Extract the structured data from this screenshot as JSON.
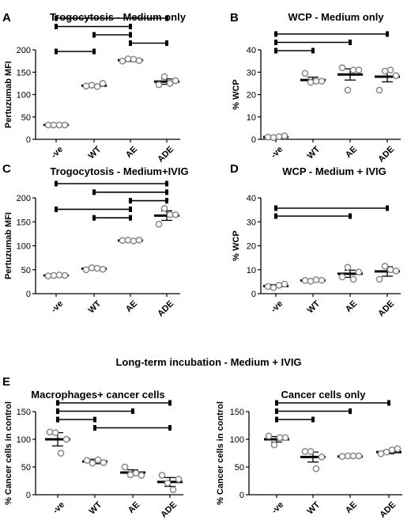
{
  "section_title": "Long-term incubation - Medium + IVIG",
  "chart_data": [
    {
      "id": "A",
      "letter": "A",
      "type": "scatter",
      "title": "Trogocytosis - Medium only",
      "ylabel": "Pertuzumab MFI",
      "ylim": [
        0,
        200
      ],
      "yticks": [
        0,
        50,
        100,
        150,
        200
      ],
      "categories": [
        "-ve",
        "WT",
        "AE",
        "ADE"
      ],
      "means": [
        32,
        120,
        177,
        129
      ],
      "sem": [
        1,
        2,
        3,
        6
      ],
      "points": [
        [
          32,
          32,
          32,
          32
        ],
        [
          119,
          121,
          118,
          125
        ],
        [
          175,
          180,
          179,
          176
        ],
        [
          122,
          140,
          125,
          131
        ]
      ],
      "comparisons": [
        [
          0,
          3
        ],
        [
          0,
          2
        ],
        [
          1,
          2
        ],
        [
          2,
          3
        ],
        [
          0,
          1
        ]
      ]
    },
    {
      "id": "B",
      "letter": "B",
      "type": "scatter",
      "title": "WCP - Medium only",
      "ylabel": "% WCP",
      "ylim": [
        0,
        40
      ],
      "yticks": [
        0,
        10,
        20,
        30,
        40
      ],
      "categories": [
        "-ve",
        "WT",
        "AE",
        "ADE"
      ],
      "means": [
        1,
        26.5,
        29,
        28
      ],
      "sem": [
        0.3,
        1.3,
        2.5,
        2.3
      ],
      "points": [
        [
          1,
          0.8,
          1.2,
          1.5
        ],
        [
          29.5,
          25.5,
          26,
          26
        ],
        [
          32,
          22,
          31,
          31
        ],
        [
          22,
          30.5,
          31,
          28.5
        ]
      ],
      "comparisons": [
        [
          0,
          3
        ],
        [
          0,
          2
        ],
        [
          0,
          1
        ]
      ]
    },
    {
      "id": "C",
      "letter": "C",
      "type": "scatter",
      "title": "Trogocytosis - Medium+IVIG",
      "ylabel": "Pertuzumab MFI",
      "ylim": [
        0,
        200
      ],
      "yticks": [
        0,
        50,
        100,
        150,
        200
      ],
      "categories": [
        "-ve",
        "WT",
        "AE",
        "ADE"
      ],
      "means": [
        38,
        52,
        111,
        163
      ],
      "sem": [
        1,
        1.5,
        2,
        10
      ],
      "points": [
        [
          37,
          38,
          39,
          38
        ],
        [
          50,
          54,
          53,
          51
        ],
        [
          111,
          112,
          110,
          112
        ],
        [
          145,
          178,
          165,
          165
        ]
      ],
      "comparisons": [
        [
          0,
          3
        ],
        [
          1,
          3
        ],
        [
          2,
          3
        ],
        [
          0,
          2
        ],
        [
          1,
          2
        ]
      ]
    },
    {
      "id": "D",
      "letter": "D",
      "type": "scatter",
      "title": "WCP - Medium + IVIG",
      "ylabel": "% WCP",
      "ylim": [
        0,
        40
      ],
      "yticks": [
        0,
        10,
        20,
        30,
        40
      ],
      "categories": [
        "-ve",
        "WT",
        "AE",
        "ADE"
      ],
      "means": [
        3.2,
        5.5,
        8.3,
        9.3
      ],
      "sem": [
        0.6,
        0.3,
        1.5,
        2
      ],
      "points": [
        [
          3,
          2.5,
          3.5,
          4
        ],
        [
          5.5,
          5.2,
          5.8,
          5.6
        ],
        [
          7,
          11,
          6,
          9
        ],
        [
          6,
          11.5,
          10,
          9.5
        ]
      ],
      "comparisons": [
        [
          0,
          3
        ],
        [
          0,
          2
        ]
      ]
    },
    {
      "id": "E",
      "letter": "E",
      "type": "scatter",
      "title": "Macrophages+ cancer cells",
      "ylabel": "% Cancer cells in control",
      "ylim": [
        0,
        150
      ],
      "yticks": [
        0,
        50,
        100,
        150
      ],
      "categories": [
        "-ve",
        "WT",
        "AE",
        "ADE"
      ],
      "means": [
        100,
        60,
        40,
        23
      ],
      "sem": [
        12,
        4,
        5,
        8
      ],
      "points": [
        [
          113,
          112,
          75,
          100
        ],
        [
          62,
          57,
          63,
          58
        ],
        [
          50,
          36,
          39,
          35
        ],
        [
          35,
          21,
          9,
          28
        ]
      ],
      "comparisons": [
        [
          0,
          3
        ],
        [
          0,
          2
        ],
        [
          0,
          1
        ],
        [
          1,
          3
        ]
      ]
    },
    {
      "id": "F",
      "letter": "",
      "type": "scatter",
      "title": "Cancer cells only",
      "ylabel": "% Cancer cells in control",
      "ylim": [
        0,
        150
      ],
      "yticks": [
        0,
        50,
        100,
        150
      ],
      "categories": [
        "-ve",
        "WT",
        "AE",
        "ADE"
      ],
      "means": [
        100,
        68,
        69,
        77
      ],
      "sem": [
        5,
        9,
        2,
        3
      ],
      "points": [
        [
          106,
          90,
          103,
          103
        ],
        [
          78,
          78,
          47,
          68
        ],
        [
          69,
          70,
          70,
          70
        ],
        [
          74,
          77,
          81,
          83
        ]
      ],
      "comparisons": [
        [
          0,
          3
        ],
        [
          0,
          2
        ],
        [
          0,
          1
        ]
      ]
    }
  ]
}
